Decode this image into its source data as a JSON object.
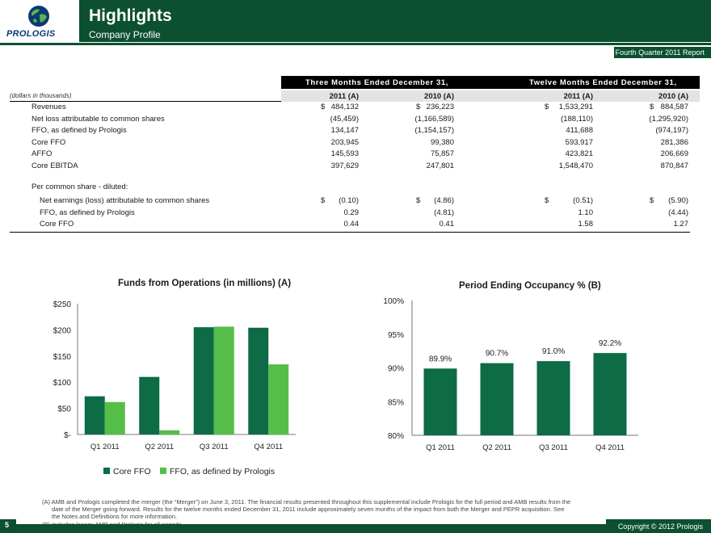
{
  "header": {
    "logo_text": "PROLOGIS",
    "title": "Highlights",
    "subtitle": "Company Profile",
    "report_tag": "Fourth Quarter 2011 Report"
  },
  "table": {
    "group_three": "Three Months Ended December 31,",
    "group_twelve": "Twelve Months Ended December 31,",
    "units": "(dollars in thousands)",
    "col_heads": [
      "2011 (A)",
      "2010 (A)",
      "2011 (A)",
      "2010 (A)"
    ],
    "rows": [
      {
        "label": "Revenues",
        "values": [
          "484,132",
          "236,223",
          "1,533,291",
          "884,587"
        ],
        "currency": true
      },
      {
        "label": "Net loss attributable to common shares",
        "values": [
          "(45,459)",
          "(1,166,589)",
          "(188,110)",
          "(1,295,920)"
        ]
      },
      {
        "label": "FFO, as defined by Prologis",
        "values": [
          "134,147",
          "(1,154,157)",
          "411,688",
          "(974,197)"
        ]
      },
      {
        "label": "Core FFO",
        "values": [
          "203,945",
          "99,380",
          "593,917",
          "281,386"
        ]
      },
      {
        "label": "AFFO",
        "values": [
          "145,593",
          "75,857",
          "423,821",
          "206,669"
        ]
      },
      {
        "label": "Core EBITDA",
        "values": [
          "397,629",
          "247,801",
          "1,548,470",
          "870,847"
        ]
      }
    ],
    "per_share_label": "Per common share - diluted:",
    "per_share_rows": [
      {
        "label": "Net earnings (loss) attributable to common shares",
        "values": [
          "(0.10)",
          "(4.86)",
          "(0.51)",
          "(5.90)"
        ],
        "currency": true
      },
      {
        "label": "FFO, as defined by Prologis",
        "values": [
          "0.29",
          "(4.81)",
          "1.10",
          "(4.44)"
        ]
      },
      {
        "label": "Core FFO",
        "values": [
          "0.44",
          "0.41",
          "1.58",
          "1.27"
        ]
      }
    ],
    "currency_symbol": "$"
  },
  "chart_data": [
    {
      "type": "bar",
      "title": "Funds from Operations (in millions) (A)",
      "categories": [
        "Q1 2011",
        "Q2 2011",
        "Q3 2011",
        "Q4 2011"
      ],
      "series": [
        {
          "name": "Core FFO",
          "values": [
            73,
            110,
            205,
            204
          ],
          "color": "#0d6b45"
        },
        {
          "name": "FFO, as defined by Prologis",
          "values": [
            62,
            8,
            206,
            134
          ],
          "color": "#55be48"
        }
      ],
      "ylim": [
        0,
        250
      ],
      "yticks": [
        0,
        50,
        100,
        150,
        200,
        250
      ],
      "ytick_labels": [
        "$-",
        "$50",
        "$100",
        "$150",
        "$200",
        "$250"
      ],
      "legend": "bottom"
    },
    {
      "type": "bar",
      "title": "Period Ending Occupancy % (B)",
      "categories": [
        "Q1 2011",
        "Q2 2011",
        "Q3 2011",
        "Q4 2011"
      ],
      "series": [
        {
          "name": "Occupancy",
          "values": [
            89.9,
            90.7,
            91.0,
            92.2
          ],
          "color": "#0d6b45"
        }
      ],
      "data_labels": [
        "89.9%",
        "90.7%",
        "91.0%",
        "92.2%"
      ],
      "ylim": [
        80,
        100
      ],
      "yticks": [
        80,
        85,
        90,
        95,
        100
      ],
      "ytick_labels": [
        "80%",
        "85%",
        "90%",
        "95%",
        "100%"
      ]
    }
  ],
  "notes": {
    "a": "(A) AMB and Prologis completed the merger (the “Merger”) on June 3, 2011. The financial results presented throughout this supplemental include Prologis for the full period and AMB results from the",
    "a2": "date of the Merger going forward. Results for the twelve months ended December 31, 2011 include approximately seven months of the impact from both the Merger and PEPR acquisition. See",
    "a3": "the Notes and Definitions for more information.",
    "b": "(B) Includes legacy AMB and Prologis for all periods."
  },
  "footer": {
    "page_number": "5",
    "copyright": "Copyright © 2012 Prologis"
  },
  "colors": {
    "brand_dark": "#0d4f31",
    "bar_dark": "#0d6b45",
    "bar_light": "#55be48"
  }
}
